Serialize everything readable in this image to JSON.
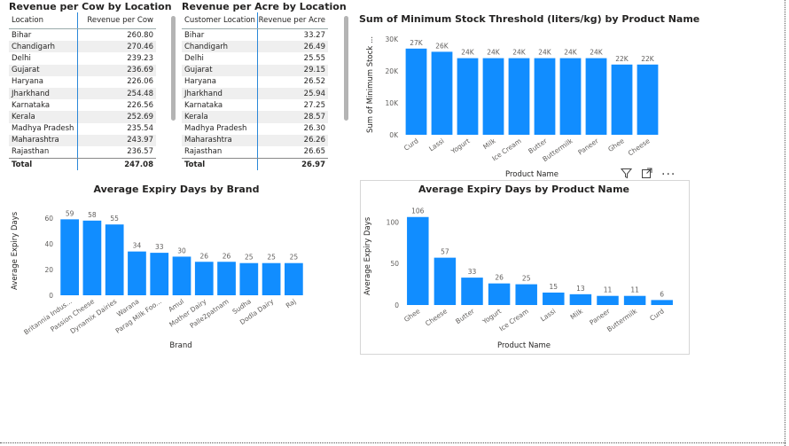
{
  "colors": {
    "bar": "#118DFF",
    "label": "#605E5C",
    "grid": "#e5e5e5"
  },
  "table1": {
    "title": "Revenue per Cow by Location",
    "col1": "Location",
    "col2": "Revenue per Cow",
    "rows": [
      {
        "k": "Bihar",
        "v": "260.80"
      },
      {
        "k": "Chandigarh",
        "v": "270.46"
      },
      {
        "k": "Delhi",
        "v": "239.23"
      },
      {
        "k": "Gujarat",
        "v": "236.69"
      },
      {
        "k": "Haryana",
        "v": "226.06"
      },
      {
        "k": "Jharkhand",
        "v": "254.48"
      },
      {
        "k": "Karnataka",
        "v": "226.56"
      },
      {
        "k": "Kerala",
        "v": "252.69"
      },
      {
        "k": "Madhya Pradesh",
        "v": "235.54"
      },
      {
        "k": "Maharashtra",
        "v": "243.97"
      },
      {
        "k": "Rajasthan",
        "v": "236.57"
      }
    ],
    "total_label": "Total",
    "total_value": "247.08"
  },
  "table2": {
    "title": "Revenue per Acre by Location",
    "col1": "Customer Location",
    "col2": "Revenue per Acre",
    "rows": [
      {
        "k": "Bihar",
        "v": "33.27"
      },
      {
        "k": "Chandigarh",
        "v": "26.49"
      },
      {
        "k": "Delhi",
        "v": "25.55"
      },
      {
        "k": "Gujarat",
        "v": "29.15"
      },
      {
        "k": "Haryana",
        "v": "26.52"
      },
      {
        "k": "Jharkhand",
        "v": "25.94"
      },
      {
        "k": "Karnataka",
        "v": "27.25"
      },
      {
        "k": "Kerala",
        "v": "28.57"
      },
      {
        "k": "Madhya Pradesh",
        "v": "26.30"
      },
      {
        "k": "Maharashtra",
        "v": "26.26"
      },
      {
        "k": "Rajasthan",
        "v": "26.65"
      }
    ],
    "total_label": "Total",
    "total_value": "26.97"
  },
  "chart_data": [
    {
      "type": "bar",
      "title": "Sum of Minimum Stock Threshold (liters/kg) by Product Name",
      "xlabel": "Product Name",
      "ylabel": "Sum of Minimum Stock ...",
      "categories": [
        "Curd",
        "Lassi",
        "Yogurt",
        "Milk",
        "Ice Cream",
        "Butter",
        "Buttermilk",
        "Paneer",
        "Ghee",
        "Cheese"
      ],
      "values": [
        27000,
        26000,
        24000,
        24000,
        24000,
        24000,
        24000,
        24000,
        22000,
        22000
      ],
      "data_labels": [
        "27K",
        "26K",
        "24K",
        "24K",
        "24K",
        "24K",
        "24K",
        "24K",
        "22K",
        "22K"
      ],
      "yticks": [
        0,
        10000,
        20000,
        30000
      ],
      "ytick_labels": [
        "0K",
        "10K",
        "20K",
        "30K"
      ],
      "ylim": [
        0,
        30000
      ]
    },
    {
      "type": "bar",
      "title": "Average Expiry Days by Brand",
      "xlabel": "Brand",
      "ylabel": "Average Expiry Days",
      "categories": [
        "Britannia Indus...",
        "Passion Cheese",
        "Dynamix Dairies",
        "Warana",
        "Parag Milk Foo...",
        "Amul",
        "Mother Dairy",
        "Palle2patnam",
        "Sudha",
        "Dodla Dairy",
        "Raj"
      ],
      "values": [
        59,
        58,
        55,
        34,
        33,
        30,
        26,
        26,
        25,
        25,
        25
      ],
      "data_labels": [
        "59",
        "58",
        "55",
        "34",
        "33",
        "30",
        "26",
        "26",
        "25",
        "25",
        "25"
      ],
      "yticks": [
        0,
        20,
        40,
        60
      ],
      "ytick_labels": [
        "0",
        "20",
        "40",
        "60"
      ],
      "ylim": [
        0,
        62
      ]
    },
    {
      "type": "bar",
      "title": "Average Expiry Days by Product Name",
      "xlabel": "Product Name",
      "ylabel": "Average Expiry Days",
      "categories": [
        "Ghee",
        "Cheese",
        "Butter",
        "Yogurt",
        "Ice Cream",
        "Lassi",
        "Milk",
        "Paneer",
        "Buttermilk",
        "Curd"
      ],
      "values": [
        106,
        57,
        33,
        26,
        25,
        15,
        13,
        11,
        11,
        6
      ],
      "data_labels": [
        "106",
        "57",
        "33",
        "26",
        "25",
        "15",
        "13",
        "11",
        "11",
        "6"
      ],
      "yticks": [
        0,
        50,
        100
      ],
      "ytick_labels": [
        "0",
        "50",
        "100"
      ],
      "ylim": [
        0,
        110
      ]
    }
  ],
  "toolbar": {
    "filter": "filter-icon",
    "focus": "focus-mode-icon",
    "more": "more-options-icon",
    "more_glyph": "···"
  }
}
